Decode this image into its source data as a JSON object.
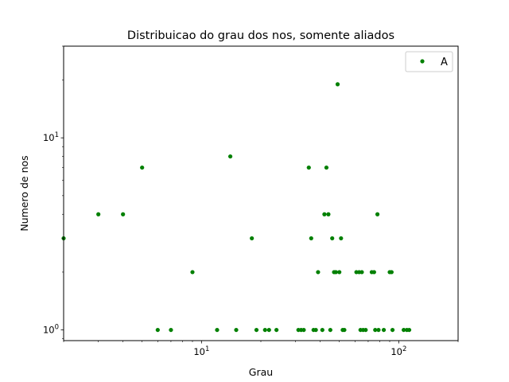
{
  "chart_data": {
    "type": "scatter",
    "title": "Distribuicao do grau dos nos, somente aliados",
    "xlabel": "Grau",
    "ylabel": "Numero de nos",
    "xscale": "log",
    "yscale": "log",
    "xlim": [
      2,
      200
    ],
    "ylim": [
      0.88,
      30
    ],
    "x_ticks": [
      {
        "value": 10,
        "base": "10",
        "exp": "1"
      },
      {
        "value": 100,
        "base": "10",
        "exp": "2"
      }
    ],
    "y_ticks": [
      {
        "value": 1,
        "base": "10",
        "exp": "0"
      },
      {
        "value": 10,
        "base": "10",
        "exp": "1"
      }
    ],
    "grid": false,
    "legend_position": "top-right",
    "series": [
      {
        "name": "A",
        "color": "#008000",
        "marker": "circle",
        "points": [
          {
            "x": 2,
            "y": 3
          },
          {
            "x": 3,
            "y": 4
          },
          {
            "x": 4,
            "y": 4
          },
          {
            "x": 5,
            "y": 7
          },
          {
            "x": 6,
            "y": 1
          },
          {
            "x": 7,
            "y": 1
          },
          {
            "x": 9,
            "y": 2
          },
          {
            "x": 12,
            "y": 1
          },
          {
            "x": 14,
            "y": 8
          },
          {
            "x": 15,
            "y": 1
          },
          {
            "x": 18,
            "y": 3
          },
          {
            "x": 19,
            "y": 1
          },
          {
            "x": 21,
            "y": 1
          },
          {
            "x": 22,
            "y": 1
          },
          {
            "x": 24,
            "y": 1
          },
          {
            "x": 31,
            "y": 1
          },
          {
            "x": 32,
            "y": 1
          },
          {
            "x": 33,
            "y": 1
          },
          {
            "x": 35,
            "y": 7
          },
          {
            "x": 36,
            "y": 3
          },
          {
            "x": 37,
            "y": 1
          },
          {
            "x": 38,
            "y": 1
          },
          {
            "x": 39,
            "y": 2
          },
          {
            "x": 41,
            "y": 1
          },
          {
            "x": 42,
            "y": 4
          },
          {
            "x": 43,
            "y": 7
          },
          {
            "x": 44,
            "y": 4
          },
          {
            "x": 45,
            "y": 1
          },
          {
            "x": 46,
            "y": 3
          },
          {
            "x": 47,
            "y": 2
          },
          {
            "x": 48,
            "y": 2
          },
          {
            "x": 49,
            "y": 19
          },
          {
            "x": 50,
            "y": 2
          },
          {
            "x": 51,
            "y": 3
          },
          {
            "x": 52,
            "y": 1
          },
          {
            "x": 53,
            "y": 1
          },
          {
            "x": 61,
            "y": 2
          },
          {
            "x": 63,
            "y": 2
          },
          {
            "x": 64,
            "y": 1
          },
          {
            "x": 65,
            "y": 2
          },
          {
            "x": 66,
            "y": 1
          },
          {
            "x": 68,
            "y": 1
          },
          {
            "x": 73,
            "y": 2
          },
          {
            "x": 75,
            "y": 2
          },
          {
            "x": 76,
            "y": 1
          },
          {
            "x": 78,
            "y": 4
          },
          {
            "x": 79,
            "y": 1
          },
          {
            "x": 84,
            "y": 1
          },
          {
            "x": 90,
            "y": 2
          },
          {
            "x": 92,
            "y": 2
          },
          {
            "x": 93,
            "y": 1
          },
          {
            "x": 106,
            "y": 1
          },
          {
            "x": 110,
            "y": 1
          },
          {
            "x": 113,
            "y": 1
          }
        ]
      }
    ]
  }
}
